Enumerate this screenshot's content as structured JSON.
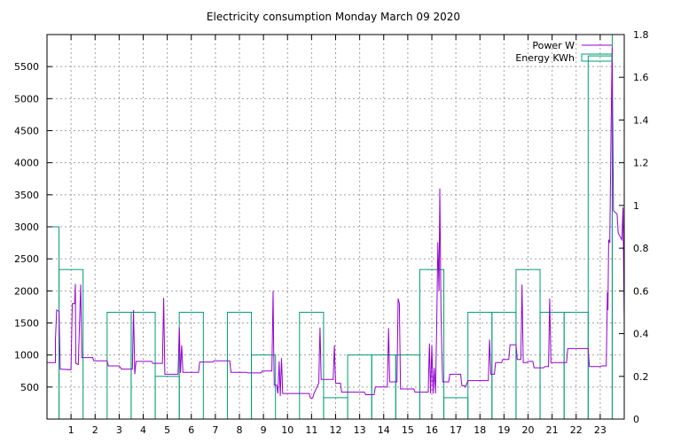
{
  "chart_data": {
    "type": "line",
    "title": "Electricity consumption Monday March 09 2020",
    "x": {
      "range": [
        0,
        24
      ],
      "tick_values": [
        1,
        2,
        3,
        4,
        5,
        6,
        7,
        8,
        9,
        10,
        11,
        12,
        13,
        14,
        15,
        16,
        17,
        18,
        19,
        20,
        21,
        22,
        23
      ],
      "tick_labels": [
        "1",
        "2",
        "3",
        "4",
        "5",
        "6",
        "7",
        "8",
        "9",
        "10",
        "11",
        "12",
        "13",
        "14",
        "15",
        "16",
        "17",
        "18",
        "19",
        "20",
        "21",
        "22",
        "23"
      ],
      "grid": true
    },
    "y": {
      "range": [
        0,
        6000
      ],
      "tick_values": [
        500,
        1000,
        1500,
        2000,
        2500,
        3000,
        3500,
        4000,
        4500,
        5000,
        5500
      ],
      "tick_labels": [
        "500",
        "1000",
        "1500",
        "2000",
        "2500",
        "3000",
        "3500",
        "4000",
        "4500",
        "5000",
        "5500"
      ],
      "grid": true
    },
    "y2": {
      "range": [
        0,
        1.8
      ],
      "tick_values": [
        0,
        0.2,
        0.4,
        0.6,
        0.8,
        1,
        1.2,
        1.4,
        1.6,
        1.8
      ],
      "tick_labels": [
        "0",
        "0.2",
        "0.4",
        "0.6",
        "0.8",
        "1",
        "1.2",
        "1.4",
        "1.6",
        "1.8"
      ]
    },
    "legend_position": "top-right",
    "series": [
      {
        "name": "Power W",
        "axis": "y",
        "style": "line",
        "color": "#9400d3",
        "points": [
          [
            0,
            880
          ],
          [
            0.35,
            880
          ],
          [
            0.35,
            1240
          ],
          [
            0.4,
            1700
          ],
          [
            0.5,
            1680
          ],
          [
            0.55,
            780
          ],
          [
            1.0,
            770
          ],
          [
            1.05,
            1800
          ],
          [
            1.15,
            1800
          ],
          [
            1.18,
            2110
          ],
          [
            1.2,
            870
          ],
          [
            1.3,
            850
          ],
          [
            1.4,
            2100
          ],
          [
            1.45,
            960
          ],
          [
            1.9,
            960
          ],
          [
            1.95,
            910
          ],
          [
            2.5,
            910
          ],
          [
            2.55,
            830
          ],
          [
            3.0,
            830
          ],
          [
            3.1,
            780
          ],
          [
            3.55,
            780
          ],
          [
            3.6,
            1700
          ],
          [
            3.65,
            700
          ],
          [
            3.7,
            900
          ],
          [
            4.35,
            900
          ],
          [
            4.4,
            870
          ],
          [
            4.8,
            870
          ],
          [
            4.85,
            1890
          ],
          [
            4.9,
            700
          ],
          [
            5.45,
            700
          ],
          [
            5.5,
            1430
          ],
          [
            5.55,
            720
          ],
          [
            5.6,
            1150
          ],
          [
            5.65,
            730
          ],
          [
            6.3,
            730
          ],
          [
            6.35,
            890
          ],
          [
            6.9,
            890
          ],
          [
            6.95,
            910
          ],
          [
            7.6,
            910
          ],
          [
            7.65,
            730
          ],
          [
            8.3,
            730
          ],
          [
            8.35,
            720
          ],
          [
            8.9,
            720
          ],
          [
            8.95,
            750
          ],
          [
            9.35,
            750
          ],
          [
            9.4,
            2000
          ],
          [
            9.42,
            1280
          ],
          [
            9.45,
            530
          ],
          [
            9.55,
            530
          ],
          [
            9.6,
            400
          ],
          [
            9.65,
            900
          ],
          [
            9.7,
            360
          ],
          [
            9.75,
            950
          ],
          [
            9.8,
            400
          ],
          [
            10.9,
            400
          ],
          [
            10.95,
            330
          ],
          [
            11.05,
            330
          ],
          [
            11.1,
            400
          ],
          [
            11.3,
            560
          ],
          [
            11.35,
            1430
          ],
          [
            11.4,
            620
          ],
          [
            11.9,
            620
          ],
          [
            11.95,
            1150
          ],
          [
            12.0,
            560
          ],
          [
            12.2,
            560
          ],
          [
            12.25,
            420
          ],
          [
            13.2,
            420
          ],
          [
            13.25,
            380
          ],
          [
            13.6,
            380
          ],
          [
            13.65,
            500
          ],
          [
            14.15,
            500
          ],
          [
            14.2,
            1420
          ],
          [
            14.25,
            580
          ],
          [
            14.55,
            580
          ],
          [
            14.6,
            1880
          ],
          [
            14.65,
            1800
          ],
          [
            14.7,
            470
          ],
          [
            15.25,
            470
          ],
          [
            15.3,
            420
          ],
          [
            15.85,
            420
          ],
          [
            15.9,
            1180
          ],
          [
            15.95,
            400
          ],
          [
            16.0,
            1150
          ],
          [
            16.05,
            400
          ],
          [
            16.1,
            800
          ],
          [
            16.15,
            400
          ],
          [
            16.2,
            1380
          ],
          [
            16.25,
            2760
          ],
          [
            16.3,
            2000
          ],
          [
            16.33,
            3600
          ],
          [
            16.38,
            1700
          ],
          [
            16.42,
            1000
          ],
          [
            16.45,
            580
          ],
          [
            16.7,
            580
          ],
          [
            16.75,
            700
          ],
          [
            17.2,
            700
          ],
          [
            17.25,
            520
          ],
          [
            17.35,
            520
          ],
          [
            17.4,
            500
          ],
          [
            17.5,
            600
          ],
          [
            18.35,
            600
          ],
          [
            18.4,
            1240
          ],
          [
            18.45,
            700
          ],
          [
            18.6,
            700
          ],
          [
            18.65,
            880
          ],
          [
            18.9,
            880
          ],
          [
            18.95,
            930
          ],
          [
            19.2,
            930
          ],
          [
            19.25,
            1160
          ],
          [
            19.5,
            1160
          ],
          [
            19.55,
            930
          ],
          [
            19.7,
            930
          ],
          [
            19.75,
            2100
          ],
          [
            19.8,
            880
          ],
          [
            19.95,
            880
          ],
          [
            20.0,
            900
          ],
          [
            20.2,
            900
          ],
          [
            20.25,
            800
          ],
          [
            20.65,
            800
          ],
          [
            20.7,
            820
          ],
          [
            20.85,
            820
          ],
          [
            20.9,
            1880
          ],
          [
            20.95,
            880
          ],
          [
            21.6,
            880
          ],
          [
            21.65,
            1100
          ],
          [
            22.5,
            1100
          ],
          [
            22.55,
            820
          ],
          [
            23.0,
            820
          ],
          [
            23.05,
            830
          ],
          [
            23.25,
            830
          ],
          [
            23.3,
            1980
          ],
          [
            23.32,
            1700
          ],
          [
            23.35,
            2800
          ],
          [
            23.4,
            2750
          ],
          [
            23.45,
            4500
          ],
          [
            23.5,
            5800
          ],
          [
            23.55,
            3250
          ],
          [
            23.7,
            3200
          ],
          [
            23.75,
            2900
          ],
          [
            23.9,
            2800
          ],
          [
            23.95,
            3300
          ],
          [
            24.0,
            1500
          ]
        ]
      },
      {
        "name": "Energy KWh",
        "axis": "y2",
        "style": "boxes",
        "color": "#009e73",
        "boxes": [
          {
            "x": 0,
            "value": 0.9
          },
          {
            "x": 1,
            "value": 0.7
          },
          {
            "x": 2,
            "value": 0
          },
          {
            "x": 3,
            "value": 0.5
          },
          {
            "x": 4,
            "value": 0.5
          },
          {
            "x": 5,
            "value": 0.2
          },
          {
            "x": 6,
            "value": 0.5
          },
          {
            "x": 7,
            "value": 0
          },
          {
            "x": 8,
            "value": 0.5
          },
          {
            "x": 9,
            "value": 0.3
          },
          {
            "x": 10,
            "value": 0
          },
          {
            "x": 11,
            "value": 0.5
          },
          {
            "x": 12,
            "value": 0.1
          },
          {
            "x": 13,
            "value": 0.3
          },
          {
            "x": 14,
            "value": 0.3
          },
          {
            "x": 15,
            "value": 0.3
          },
          {
            "x": 16,
            "value": 0.7
          },
          {
            "x": 17,
            "value": 0.1
          },
          {
            "x": 18,
            "value": 0.5
          },
          {
            "x": 19,
            "value": 0.5
          },
          {
            "x": 20,
            "value": 0.7
          },
          {
            "x": 21,
            "value": 0.5
          },
          {
            "x": 22,
            "value": 0.5
          },
          {
            "x": 23,
            "value": 1.7
          },
          {
            "x": 24,
            "value": 1.8
          }
        ]
      }
    ]
  }
}
